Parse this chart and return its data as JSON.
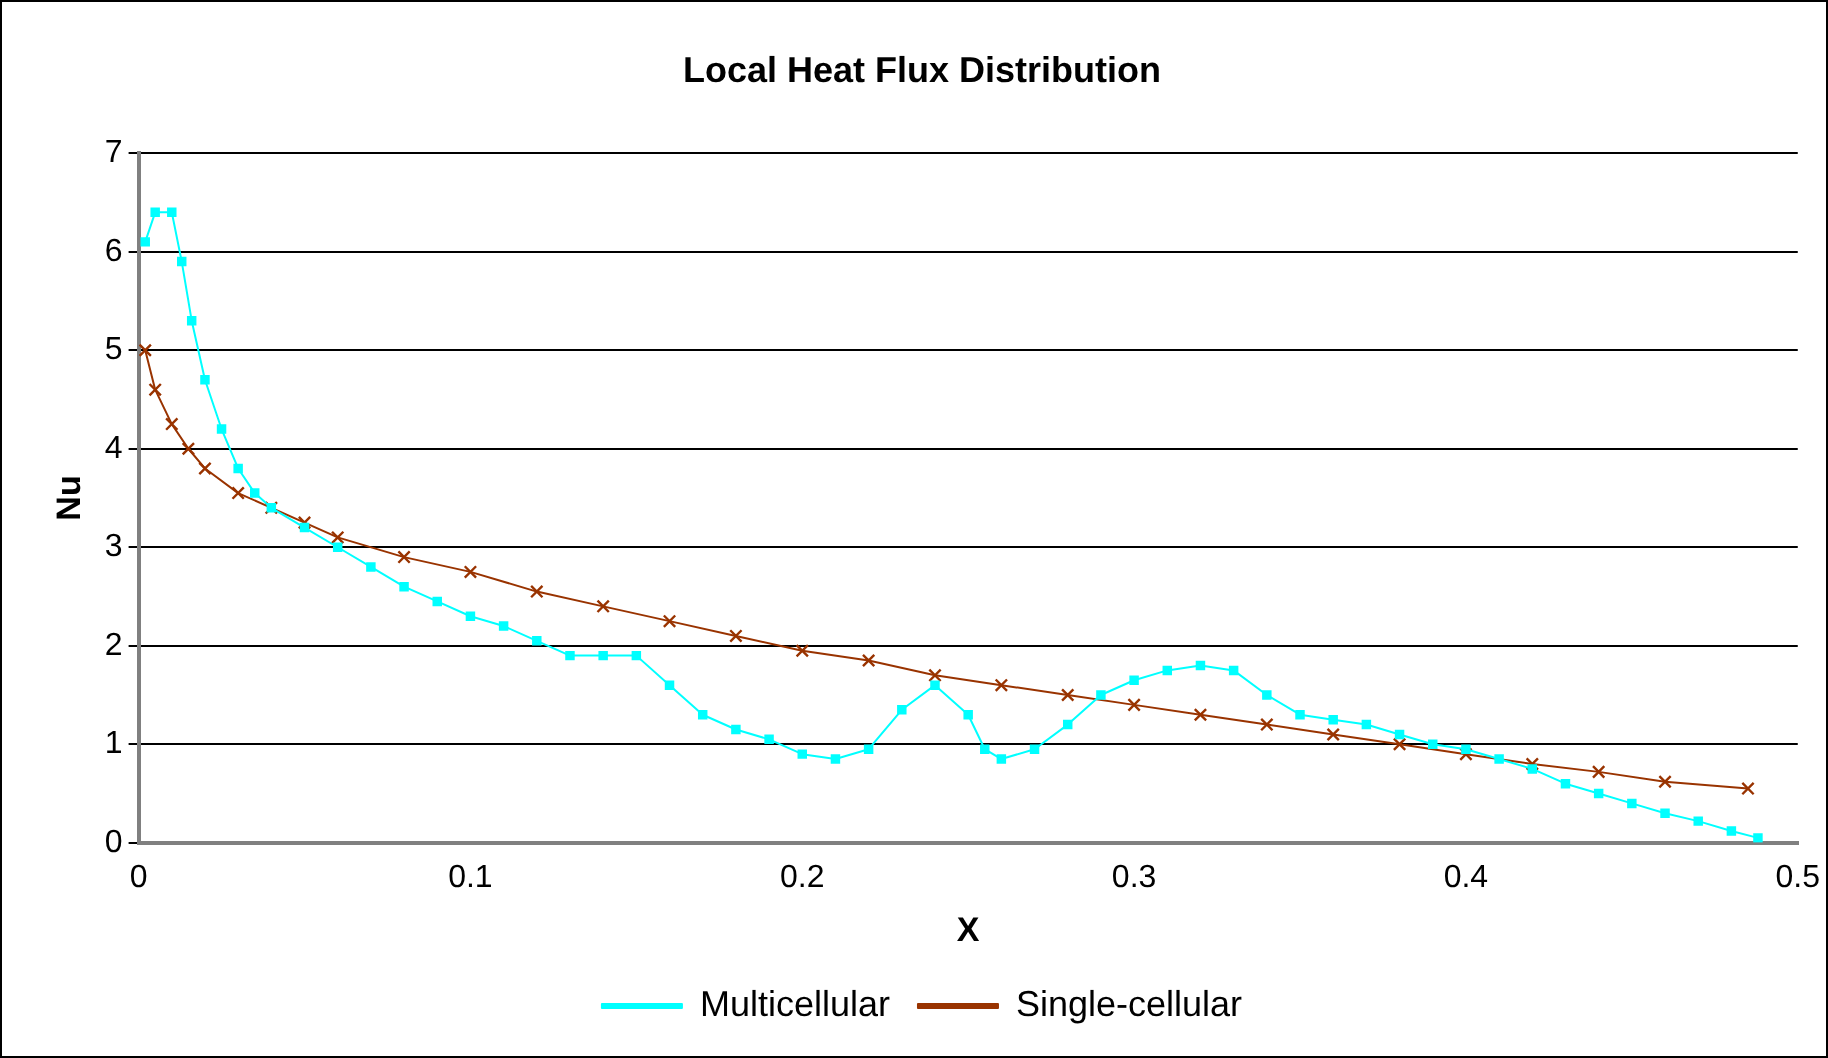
{
  "chart_data": {
    "type": "line",
    "title": "Local Heat Flux Distribution",
    "xlabel": "X",
    "ylabel": "Nu",
    "xlim": [
      0,
      0.5
    ],
    "xticks": [
      0,
      0.1,
      0.2,
      0.3,
      0.4,
      0.5
    ],
    "ylim": [
      0,
      7
    ],
    "yticks": [
      0,
      1,
      2,
      3,
      4,
      5,
      6,
      7
    ],
    "grid": "y",
    "legend": "bottom",
    "series": [
      {
        "name": "Multicellular",
        "color": "#00ffff",
        "marker": "square",
        "x": [
          0.002,
          0.005,
          0.01,
          0.013,
          0.016,
          0.02,
          0.025,
          0.03,
          0.035,
          0.04,
          0.05,
          0.06,
          0.07,
          0.08,
          0.09,
          0.1,
          0.11,
          0.12,
          0.13,
          0.14,
          0.15,
          0.16,
          0.17,
          0.18,
          0.19,
          0.2,
          0.21,
          0.22,
          0.23,
          0.24,
          0.25,
          0.255,
          0.26,
          0.27,
          0.28,
          0.29,
          0.3,
          0.31,
          0.32,
          0.33,
          0.34,
          0.35,
          0.36,
          0.37,
          0.38,
          0.39,
          0.4,
          0.41,
          0.42,
          0.43,
          0.44,
          0.45,
          0.46,
          0.47,
          0.48,
          0.488
        ],
        "values": [
          6.1,
          6.4,
          6.4,
          5.9,
          5.3,
          4.7,
          4.2,
          3.8,
          3.55,
          3.4,
          3.2,
          3.0,
          2.8,
          2.6,
          2.45,
          2.3,
          2.2,
          2.05,
          1.9,
          1.9,
          1.9,
          1.6,
          1.3,
          1.15,
          1.05,
          0.9,
          0.85,
          0.95,
          1.35,
          1.6,
          1.3,
          0.95,
          0.85,
          0.95,
          1.2,
          1.5,
          1.65,
          1.75,
          1.8,
          1.75,
          1.5,
          1.3,
          1.25,
          1.2,
          1.1,
          1.0,
          0.95,
          0.85,
          0.75,
          0.6,
          0.5,
          0.4,
          0.3,
          0.22,
          0.12,
          0.05
        ]
      },
      {
        "name": "Single-cellular",
        "color": "#993300",
        "marker": "cross",
        "x": [
          0.002,
          0.005,
          0.01,
          0.015,
          0.02,
          0.03,
          0.04,
          0.05,
          0.06,
          0.08,
          0.1,
          0.12,
          0.14,
          0.16,
          0.18,
          0.2,
          0.22,
          0.24,
          0.26,
          0.28,
          0.3,
          0.32,
          0.34,
          0.36,
          0.38,
          0.4,
          0.42,
          0.44,
          0.46,
          0.485
        ],
        "values": [
          5.0,
          4.6,
          4.25,
          4.0,
          3.8,
          3.55,
          3.4,
          3.25,
          3.1,
          2.9,
          2.75,
          2.55,
          2.4,
          2.25,
          2.1,
          1.95,
          1.85,
          1.7,
          1.6,
          1.5,
          1.4,
          1.3,
          1.2,
          1.1,
          1.0,
          0.9,
          0.8,
          0.72,
          0.62,
          0.55
        ]
      }
    ]
  }
}
